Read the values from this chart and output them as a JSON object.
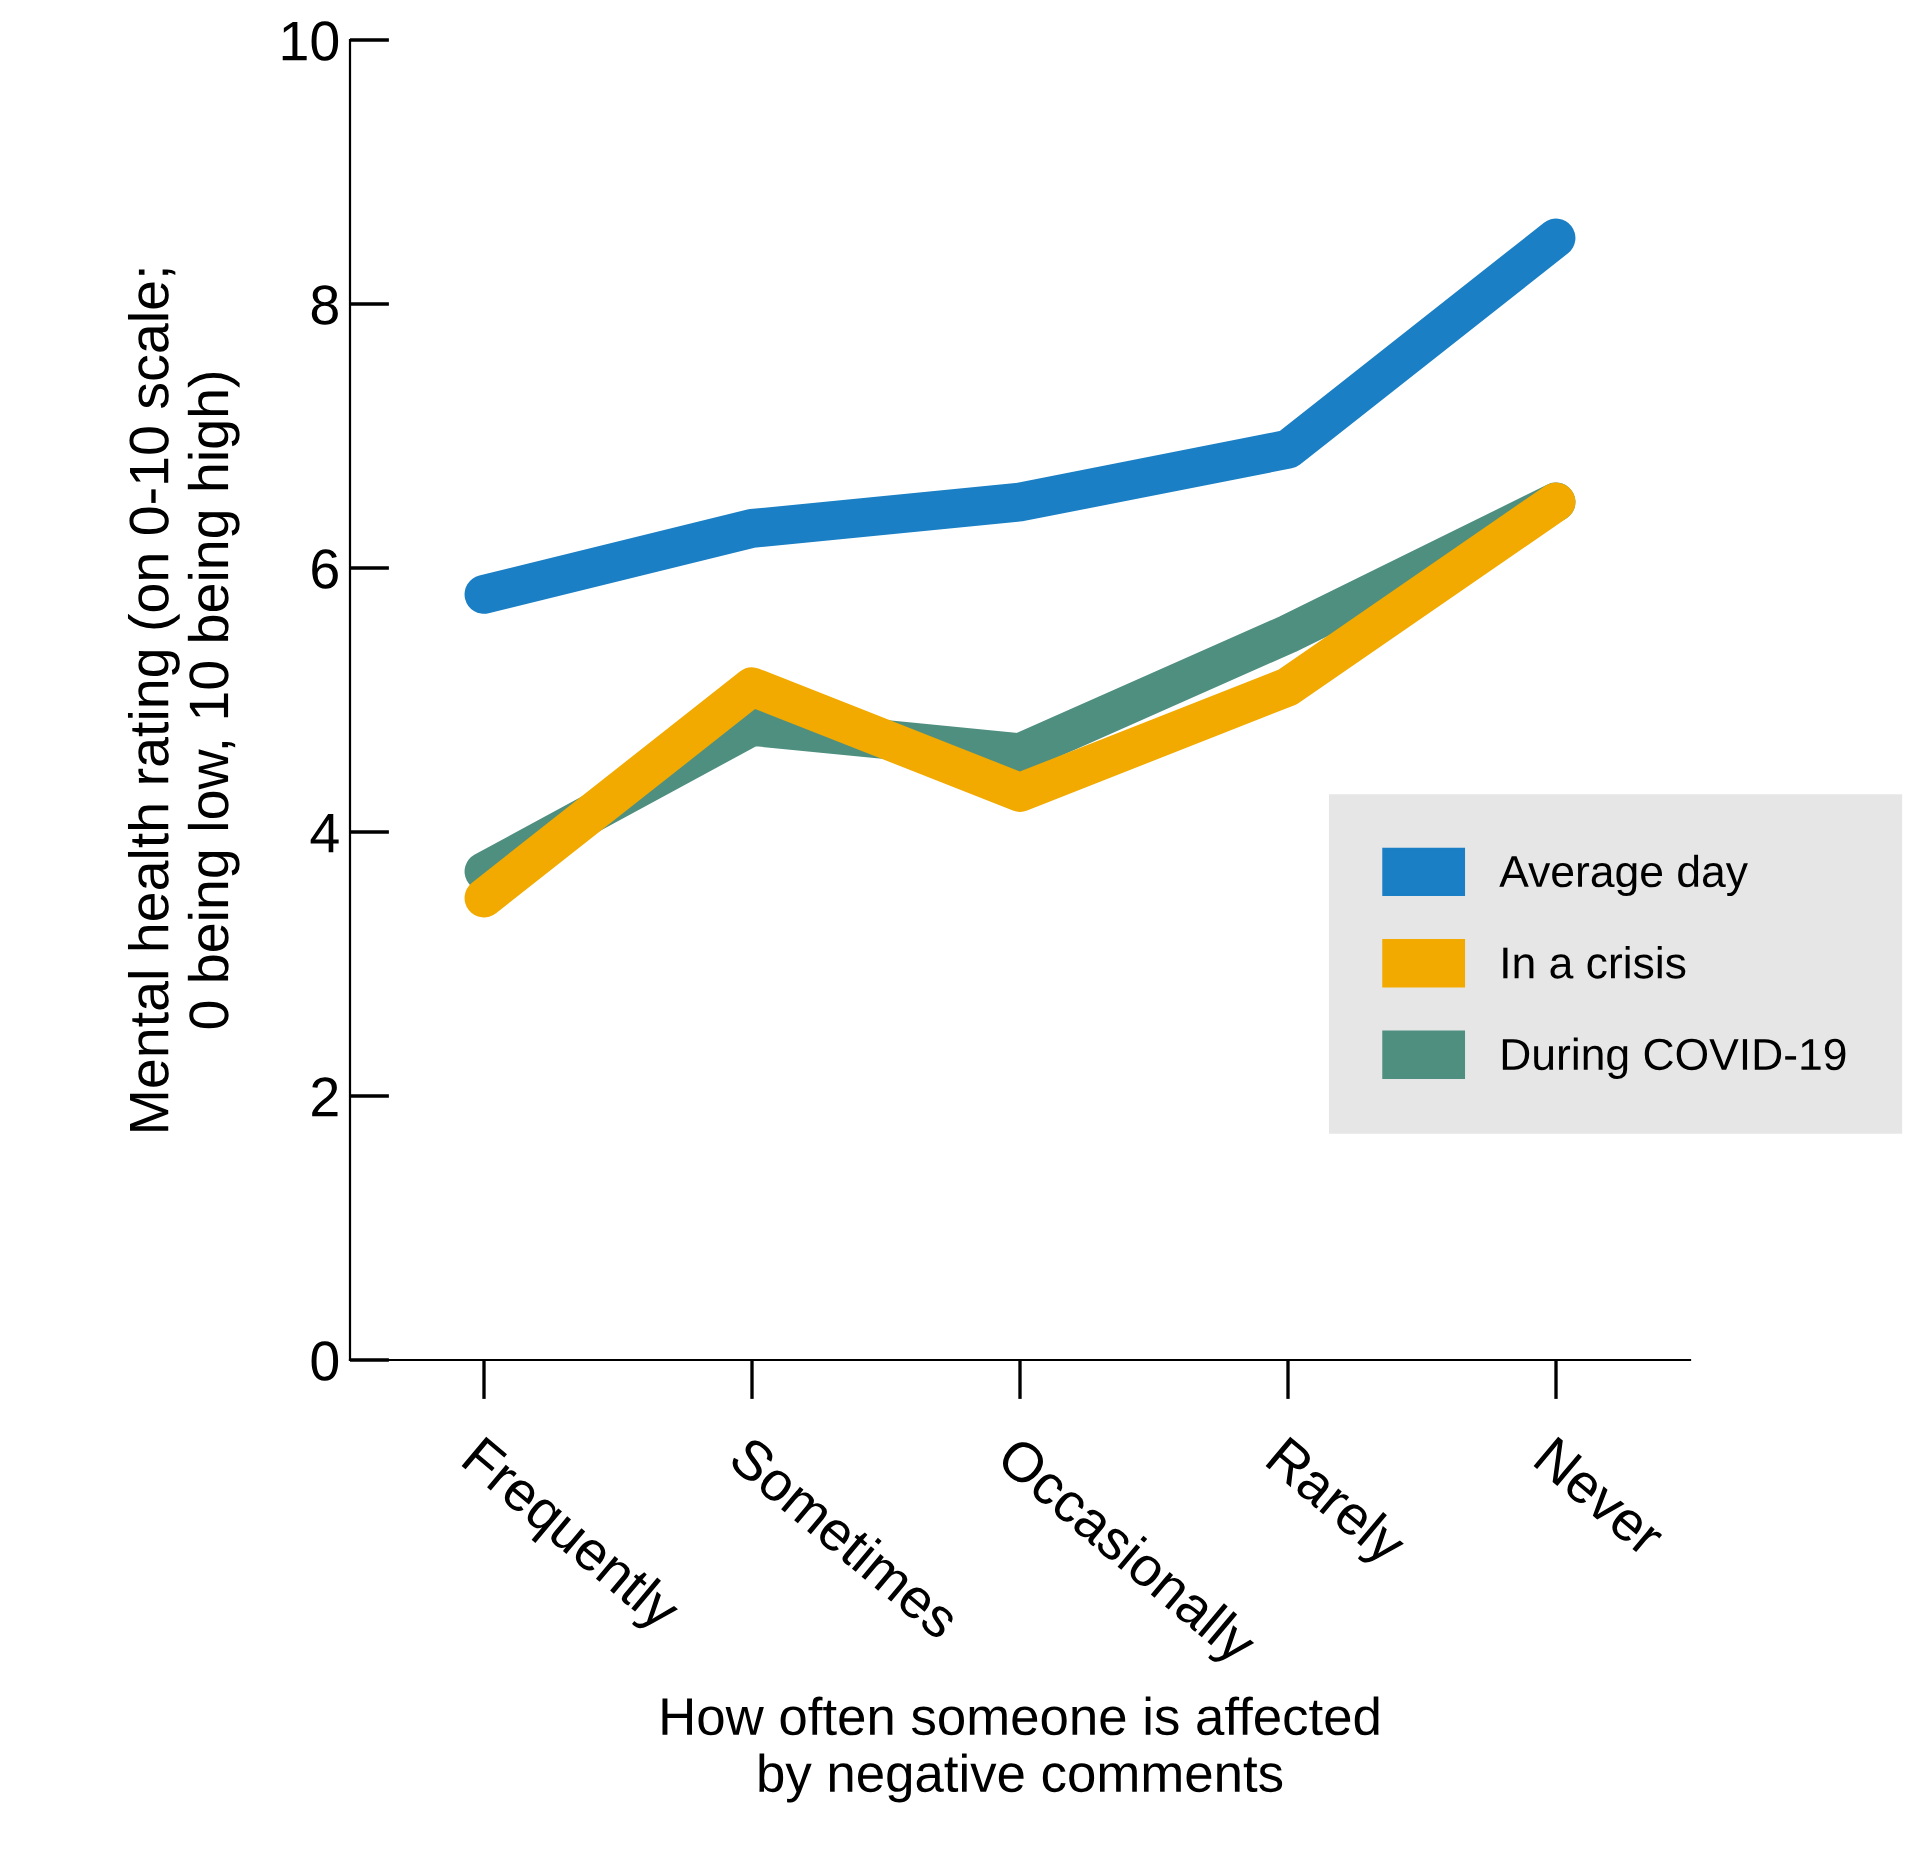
{
  "chart_data": {
    "type": "line",
    "xlabel": "How often someone is affected\nby negative comments",
    "ylabel": "Mental health rating (on 0-10 scale;\n0 being low, 10 being high)",
    "categories": [
      "Frequently",
      "Sometimes",
      "Occasionally",
      "Rarely",
      "Never"
    ],
    "series": [
      {
        "name": "Average day",
        "color": "#1a7fc4",
        "values": [
          5.8,
          6.3,
          6.5,
          6.9,
          8.5
        ]
      },
      {
        "name": "In a crisis",
        "color": "#f2a900",
        "values": [
          3.5,
          5.1,
          4.3,
          5.1,
          6.5
        ]
      },
      {
        "name": "During COVID-19",
        "color": "#4f8f80",
        "values": [
          3.7,
          4.8,
          4.6,
          5.5,
          6.5
        ]
      }
    ],
    "ylim": [
      0,
      10
    ],
    "yticks": [
      0,
      2,
      4,
      6,
      8,
      10
    ],
    "grid": false,
    "legend": "right",
    "line_style": "solid"
  }
}
